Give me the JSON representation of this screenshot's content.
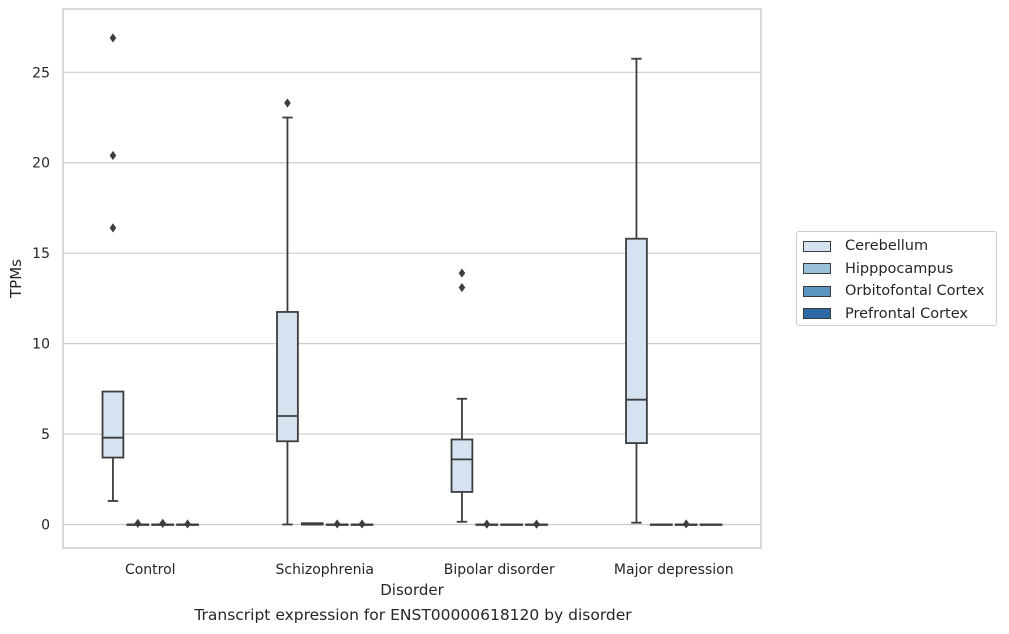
{
  "chart_data": {
    "type": "box",
    "xlabel": "Disorder",
    "ylabel": "TPMs",
    "caption": "Transcript expression for ENST00000618120 by disorder",
    "ylim": [
      -1.3,
      28.5
    ],
    "yticks": [
      0,
      5,
      10,
      15,
      20,
      25
    ],
    "grid": "horizontal",
    "legend_position": "outside-right",
    "categories": [
      "Control",
      "Schizophrenia",
      "Bipolar disorder",
      "Major depression"
    ],
    "series": [
      {
        "name": "Cerebellum",
        "color": "#d5e2ef",
        "boxes": [
          {
            "q1": 3.7,
            "median": 4.8,
            "q3": 7.35,
            "whisker_low": 1.3,
            "whisker_high": 7.35,
            "outliers": [
              16.4,
              20.4,
              26.9
            ]
          },
          {
            "q1": 4.6,
            "median": 6.0,
            "q3": 11.75,
            "whisker_low": 0.0,
            "whisker_high": 22.5,
            "outliers": [
              23.3
            ]
          },
          {
            "q1": 1.8,
            "median": 3.6,
            "q3": 4.7,
            "whisker_low": 0.15,
            "whisker_high": 6.95,
            "outliers": [
              13.1,
              13.9
            ]
          },
          {
            "q1": 4.5,
            "median": 6.9,
            "q3": 15.8,
            "whisker_low": 0.1,
            "whisker_high": 25.75,
            "outliers": []
          }
        ]
      },
      {
        "name": "Hipppocampus",
        "color": "#9ac2dc",
        "boxes": [
          {
            "q1": 0.0,
            "median": 0.0,
            "q3": 0.0,
            "whisker_low": 0.0,
            "whisker_high": 0.0,
            "outliers": [
              0.06
            ]
          },
          {
            "q1": 0.0,
            "median": 0.0,
            "q3": 0.07,
            "whisker_low": 0.0,
            "whisker_high": 0.07,
            "outliers": []
          },
          {
            "q1": 0.0,
            "median": 0.0,
            "q3": 0.0,
            "whisker_low": 0.0,
            "whisker_high": 0.0,
            "outliers": [
              0.02
            ]
          },
          {
            "q1": 0.0,
            "median": 0.0,
            "q3": 0.0,
            "whisker_low": 0.0,
            "whisker_high": 0.0,
            "outliers": []
          }
        ]
      },
      {
        "name": "Orbitofontal Cortex",
        "color": "#5b94bf",
        "boxes": [
          {
            "q1": 0.0,
            "median": 0.0,
            "q3": 0.0,
            "whisker_low": 0.0,
            "whisker_high": 0.0,
            "outliers": [
              0.06
            ]
          },
          {
            "q1": 0.0,
            "median": 0.0,
            "q3": 0.0,
            "whisker_low": 0.0,
            "whisker_high": 0.0,
            "outliers": [
              0.03
            ]
          },
          {
            "q1": 0.0,
            "median": 0.0,
            "q3": 0.0,
            "whisker_low": 0.0,
            "whisker_high": 0.0,
            "outliers": []
          },
          {
            "q1": 0.0,
            "median": 0.0,
            "q3": 0.0,
            "whisker_low": 0.0,
            "whisker_high": 0.0,
            "outliers": [
              0.03
            ]
          }
        ]
      },
      {
        "name": "Prefrontal Cortex",
        "color": "#2e6aa5",
        "boxes": [
          {
            "q1": 0.0,
            "median": 0.0,
            "q3": 0.0,
            "whisker_low": 0.0,
            "whisker_high": 0.0,
            "outliers": [
              0.03
            ]
          },
          {
            "q1": 0.0,
            "median": 0.0,
            "q3": 0.0,
            "whisker_low": 0.0,
            "whisker_high": 0.0,
            "outliers": [
              0.03
            ]
          },
          {
            "q1": 0.0,
            "median": 0.0,
            "q3": 0.0,
            "whisker_low": 0.0,
            "whisker_high": 0.0,
            "outliers": [
              0.02
            ]
          },
          {
            "q1": 0.0,
            "median": 0.0,
            "q3": 0.0,
            "whisker_low": 0.0,
            "whisker_high": 0.0,
            "outliers": []
          }
        ]
      }
    ]
  }
}
